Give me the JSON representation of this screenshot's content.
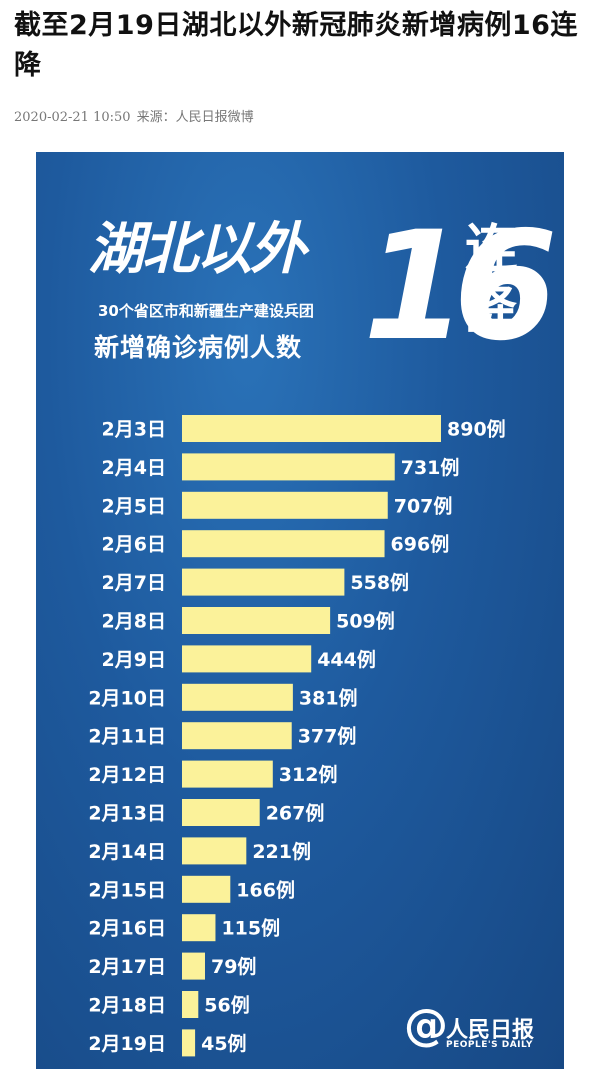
{
  "article": {
    "headline": "截至2月19日湖北以外新冠肺炎新增病例16连降",
    "datetime": "2020-02-21 10:50",
    "source": "来源：人民日报微博"
  },
  "poster": {
    "title_main": "湖北以外",
    "subtitle_1": "30个省区市和新疆生产建设兵团",
    "subtitle_2": "新增确诊病例人数",
    "big_number": "16",
    "side_text_1": "连",
    "side_text_2": "降",
    "logo_mark": "@",
    "logo_name": "人民日报",
    "logo_en": "PEOPLE'S DAILY",
    "background_color": "#1e5a9e",
    "bar_color": "#fbf29a"
  },
  "chart_data": {
    "type": "bar",
    "orientation": "horizontal",
    "title": "",
    "xlabel": "",
    "ylabel": "",
    "value_suffix": "例",
    "categories": [
      "2月3日",
      "2月4日",
      "2月5日",
      "2月6日",
      "2月7日",
      "2月8日",
      "2月9日",
      "2月10日",
      "2月11日",
      "2月12日",
      "2月13日",
      "2月14日",
      "2月15日",
      "2月16日",
      "2月17日",
      "2月18日",
      "2月19日"
    ],
    "values": [
      890,
      731,
      707,
      696,
      558,
      509,
      444,
      381,
      377,
      312,
      267,
      221,
      166,
      115,
      79,
      56,
      45
    ],
    "data_labels": [
      "890例",
      "731例",
      "707例",
      "696例",
      "558例",
      "509例",
      "444例",
      "381例",
      "377例",
      "312例",
      "267例",
      "221例",
      "166例",
      "115例",
      "79例",
      "56例",
      "45例"
    ],
    "xlim": [
      0,
      890
    ],
    "grid": false,
    "legend": "none"
  }
}
